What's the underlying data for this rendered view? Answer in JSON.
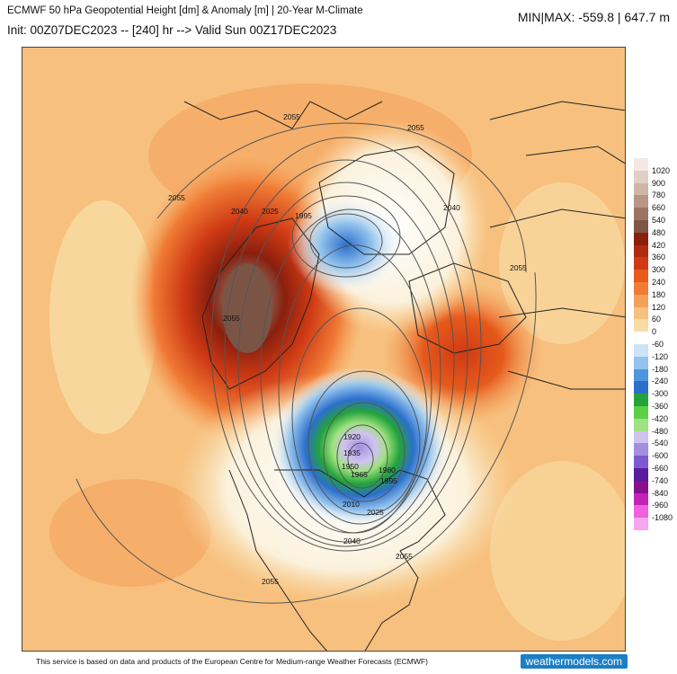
{
  "header": {
    "title": "ECMWF 50 hPa Geopotential Height [dm] & Anomaly [m] | 20-Year M-Climate",
    "subtitle": "Init: 00Z07DEC2023 -- [240] hr --> Valid Sun 00Z17DEC2023",
    "minmax": "MIN|MAX: -559.8 | 647.7 m"
  },
  "colorbar": {
    "labels": [
      "1020",
      "900",
      "780",
      "660",
      "540",
      "480",
      "420",
      "360",
      "300",
      "240",
      "180",
      "120",
      "60",
      "0",
      "-60",
      "-120",
      "-180",
      "-240",
      "-300",
      "-360",
      "-420",
      "-480",
      "-540",
      "-600",
      "-660",
      "-740",
      "-840",
      "-960",
      "-1080"
    ],
    "colors": [
      "#f3e8e4",
      "#e1cfc6",
      "#cfb5a8",
      "#b89585",
      "#9c7463",
      "#7e5546",
      "#8a1f0e",
      "#b02a10",
      "#cf3a14",
      "#e65a1c",
      "#f07b35",
      "#f5a05a",
      "#f7c07e",
      "#f8dca4",
      "#ffffff",
      "#cde3f7",
      "#93c3ee",
      "#4f95de",
      "#2b6fcb",
      "#24a33b",
      "#5ccf48",
      "#9fe27f",
      "#cfc3ef",
      "#a58de0",
      "#7d5ad0",
      "#5a1d9c",
      "#8a0f8f",
      "#c124b5",
      "#ee62de",
      "#f7a6ef"
    ]
  },
  "contours": {
    "labels": [
      "2055",
      "2055",
      "2055",
      "2040",
      "2025",
      "1995",
      "2040",
      "2055",
      "2055",
      "1920",
      "1935",
      "1950",
      "1965",
      "1980",
      "1995",
      "2010",
      "2025",
      "2040",
      "2055",
      "2055"
    ]
  },
  "footer": {
    "note": "This service is based on data and products of the European Centre for Medium-range Weather Forecasts (ECMWF)",
    "brand": "weathermodels.com"
  }
}
